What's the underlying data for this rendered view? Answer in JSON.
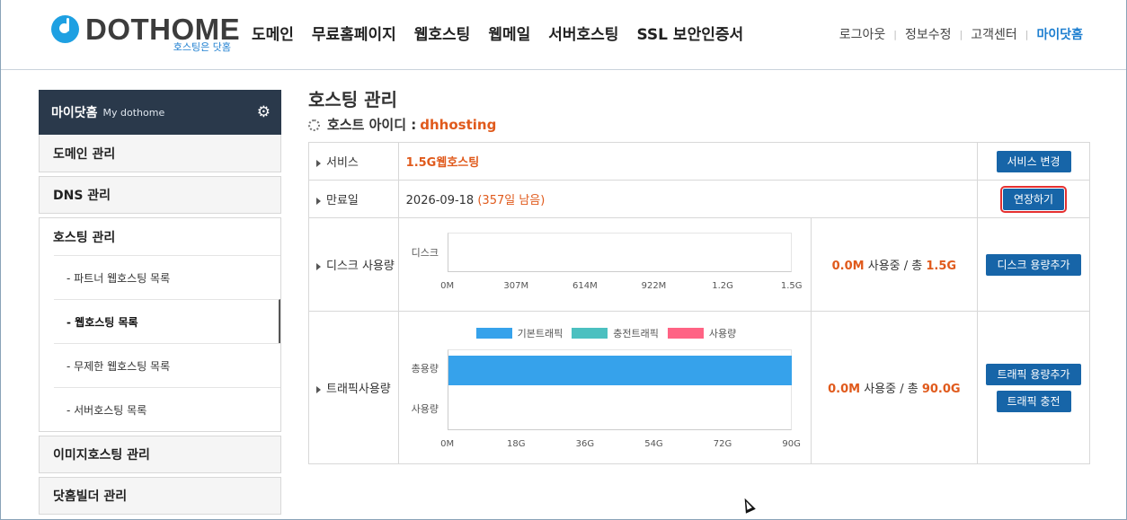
{
  "header": {
    "logo_text": "DOTHOME",
    "logo_sub": "호스팅은 닷홈",
    "nav": [
      "도메인",
      "무료홈페이지",
      "웹호스팅",
      "웹메일",
      "서버호스팅",
      "SSL 보안인증서"
    ],
    "util": [
      "로그아웃",
      "정보수정",
      "고객센터",
      "마이닷홈"
    ]
  },
  "sidebar": {
    "title": "마이닷홈",
    "subtitle": "My dothome",
    "menus": [
      "도메인 관리",
      "DNS 관리",
      "호스팅 관리",
      "이미지호스팅 관리",
      "닷홈빌더 관리"
    ],
    "sub_items": [
      "- 파트너 웹호스팅 목록",
      "- 웹호스팅 목록",
      "- 무제한 웹호스팅 목록",
      "- 서버호스팅 목록"
    ],
    "selected_sub": "- 웹호스팅 목록"
  },
  "main": {
    "title": "호스팅 관리",
    "host_label": "호스트 아이디 :",
    "host_id": "dhhosting",
    "rows": {
      "service": {
        "label": "서비스",
        "value": "1.5G웹호스팅",
        "button": "서비스 변경"
      },
      "expiry": {
        "label": "만료일",
        "date": "2026-09-18",
        "remain": "(357일 남음)",
        "button": "연장하기"
      },
      "disk": {
        "label": "디스크 사용량",
        "used": "0.0M",
        "mid": " 사용중 / 총 ",
        "total": "1.5G",
        "button": "디스크 용량추가"
      },
      "traffic": {
        "label": "트래픽사용량",
        "used": "0.0M",
        "mid": " 사용중 / 총 ",
        "total": "90.0G",
        "button1": "트래픽 용량추가",
        "button2": "트래픽 충전"
      }
    }
  },
  "chart_data": [
    {
      "type": "bar",
      "orientation": "horizontal",
      "categories": [
        "디스크"
      ],
      "values": [
        0
      ],
      "x_ticks": [
        "0M",
        "307M",
        "614M",
        "922M",
        "1.2G",
        "1.5G"
      ],
      "xlim": [
        0,
        1.5
      ],
      "x_unit": "G"
    },
    {
      "type": "bar",
      "orientation": "horizontal",
      "categories": [
        "총용량",
        "사용량"
      ],
      "legend": [
        "기본트래픽",
        "충전트래픽",
        "사용량"
      ],
      "legend_colors": [
        "#36a2eb",
        "#4bc0c0",
        "#ff6384"
      ],
      "series": [
        {
          "name": "기본트래픽",
          "values": [
            90,
            0
          ]
        },
        {
          "name": "사용량",
          "values": [
            0,
            0
          ]
        }
      ],
      "x_ticks": [
        "0M",
        "18G",
        "36G",
        "54G",
        "72G",
        "90G"
      ],
      "xlim": [
        0,
        90
      ],
      "x_unit": "G",
      "legend_position": "top"
    }
  ]
}
